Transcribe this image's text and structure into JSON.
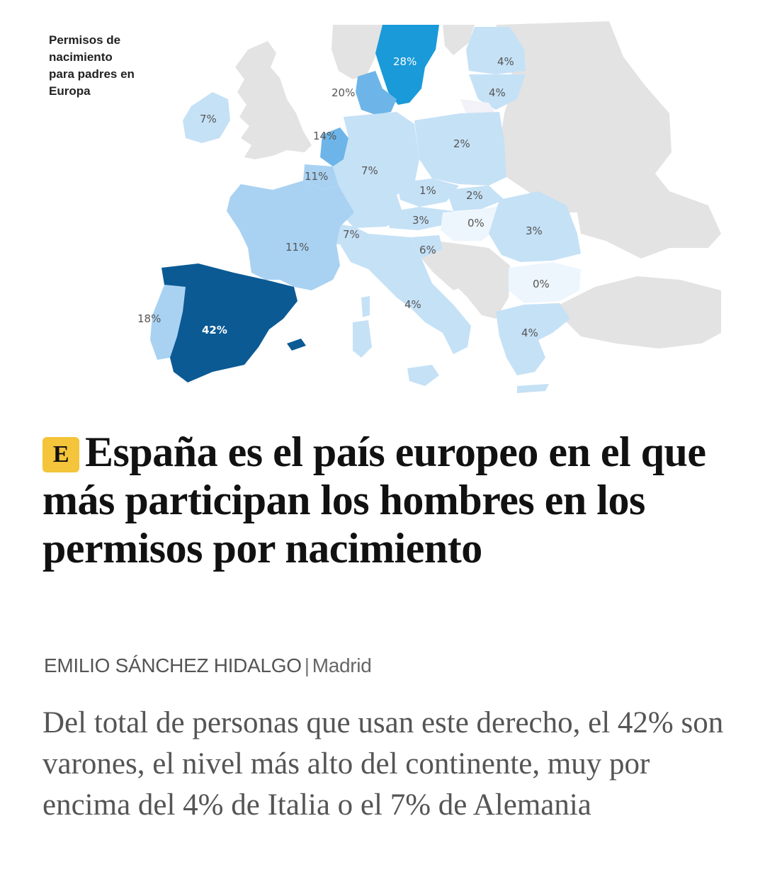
{
  "map": {
    "caption": "Permisos de nacimiento para padres en Europa",
    "colors": {
      "background_land": "#e3e3e3",
      "very_light": "#eaf4fc",
      "light": "#c5e1f6",
      "medium_light": "#a9d2f2",
      "medium": "#6db5e8",
      "strong": "#1a9ad9",
      "darkest": "#0b5a94"
    },
    "values": {
      "sweden": "28%",
      "denmark": "20%",
      "estonia": "4%",
      "latvia": "4%",
      "ireland": "7%",
      "netherlands": "14%",
      "belgium": "11%",
      "germany": "7%",
      "poland": "2%",
      "czechia": "1%",
      "slovakia": "2%",
      "austria": "3%",
      "hungary": "0%",
      "switzerland": "7%",
      "slovenia": "6%",
      "romania": "3%",
      "france": "11%",
      "bulgaria": "0%",
      "italy": "4%",
      "portugal": "18%",
      "spain": "42%",
      "greece": "4%"
    }
  },
  "article": {
    "logo_letter": "E",
    "headline": "España es el país europeo en el que más participan los hombres en los permisos por nacimiento",
    "author": "EMILIO SÁNCHEZ HIDALGO",
    "separator": "|",
    "location": "Madrid",
    "subheadline": "Del total de personas que usan este derecho, el 42% son varones, el nivel más alto del continente, muy por encima del 4% de Italia o el 7% de Alemania"
  }
}
